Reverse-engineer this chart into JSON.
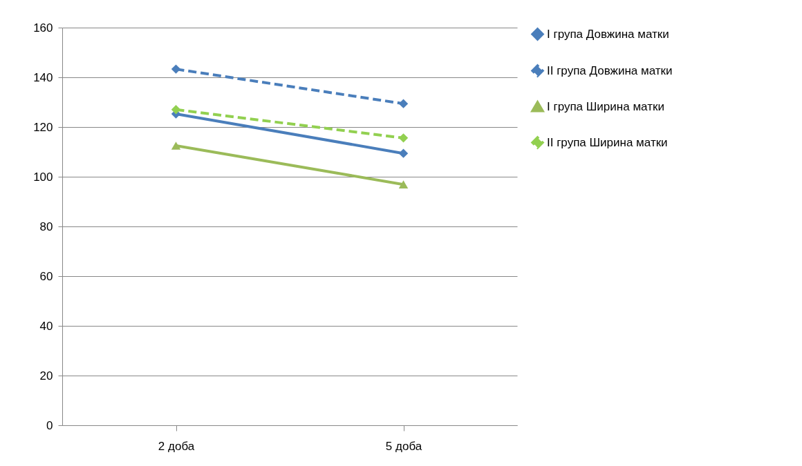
{
  "chart_data": {
    "type": "line",
    "categories": [
      "2 доба",
      "5 доба"
    ],
    "series": [
      {
        "name": "I група Довжина матки",
        "color": "#4a7ebb",
        "values": [
          125.3,
          109.4
        ],
        "marker": "diamond",
        "line_style": "solid"
      },
      {
        "name": "II група Довжина матки",
        "color": "#4a7ebb",
        "values": [
          143.3,
          129.4
        ],
        "marker": "diamond",
        "line_style": "dashed"
      },
      {
        "name": "I група Ширина матки",
        "color": "#9bbb59",
        "values": [
          112.5,
          96.9
        ],
        "marker": "triangle",
        "line_style": "solid"
      },
      {
        "name": "II група Ширина матки",
        "color": "#92d050",
        "values": [
          127,
          115.6
        ],
        "marker": "diamond",
        "line_style": "dashed"
      }
    ],
    "ylim": [
      0,
      160
    ],
    "yticks": [
      0,
      20,
      40,
      60,
      80,
      100,
      120,
      140,
      160
    ],
    "grid": "y",
    "legend": "right"
  }
}
